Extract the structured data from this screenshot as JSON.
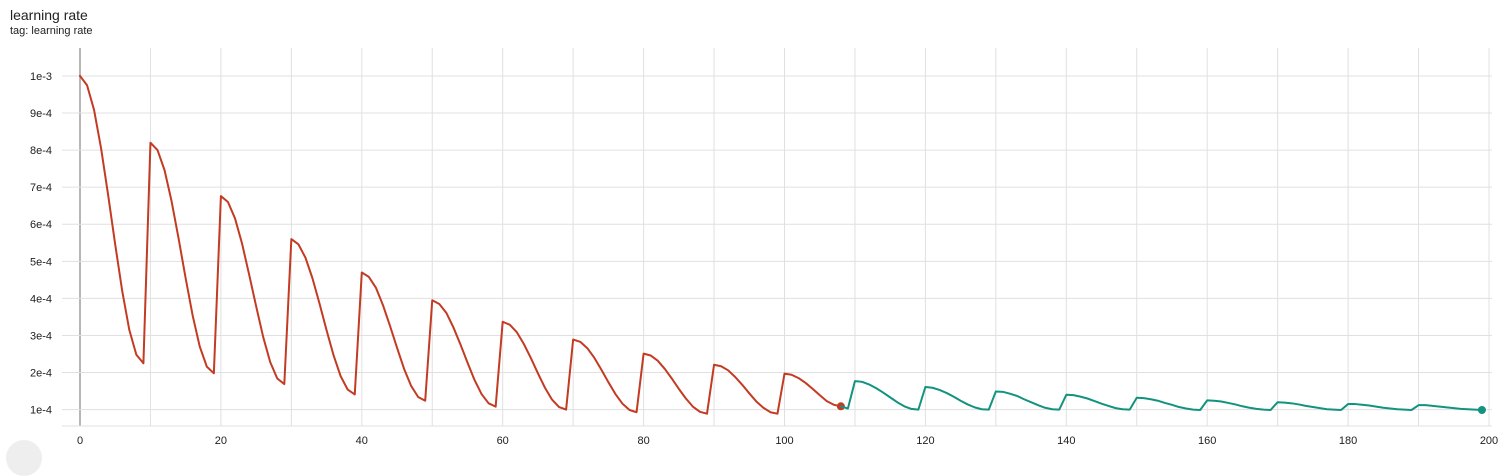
{
  "card": {
    "title": "learning rate",
    "tag": "tag: learning rate"
  },
  "chart_data": {
    "type": "line",
    "title": "learning rate",
    "subtitle": "tag: learning rate",
    "xlabel": "",
    "ylabel": "",
    "xlim": [
      -2,
      201
    ],
    "ylim": [
      7.2e-05,
      0.00107
    ],
    "x_ticks": [
      0,
      20,
      40,
      60,
      80,
      100,
      120,
      140,
      160,
      180,
      200
    ],
    "y_ticks": [
      0.0001,
      0.0002,
      0.0003,
      0.0004,
      0.0005,
      0.0006,
      0.0007,
      0.0008,
      0.0009,
      0.001
    ],
    "y_tick_labels": [
      "1e-4",
      "2e-4",
      "3e-4",
      "4e-4",
      "5e-4",
      "6e-4",
      "7e-4",
      "8e-4",
      "9e-4",
      "1e-3"
    ],
    "grid": true,
    "series": [
      {
        "color": "#c23b22",
        "end_marker": true,
        "x": [
          0,
          1,
          2,
          3,
          4,
          5,
          6,
          7,
          8,
          9,
          10,
          11,
          12,
          13,
          14,
          15,
          16,
          17,
          18,
          19,
          20,
          21,
          22,
          23,
          24,
          25,
          26,
          27,
          28,
          29,
          30,
          31,
          32,
          33,
          34,
          35,
          36,
          37,
          38,
          39,
          40,
          41,
          42,
          43,
          44,
          45,
          46,
          47,
          48,
          49,
          50,
          51,
          52,
          53,
          54,
          55,
          56,
          57,
          58,
          59,
          60,
          61,
          62,
          63,
          64,
          65,
          66,
          67,
          68,
          69,
          70,
          71,
          72,
          73,
          74,
          75,
          76,
          77,
          78,
          79,
          80,
          81,
          82,
          83,
          84,
          85,
          86,
          87,
          88,
          89,
          90,
          91,
          92,
          93,
          94,
          95,
          96,
          97,
          98,
          99,
          100,
          101,
          102,
          103,
          104,
          105,
          106,
          107,
          108
        ],
        "y": [
          0.001,
          0.000975,
          0.000908,
          0.000804,
          0.000678,
          0.000545,
          0.000419,
          0.000315,
          0.000248,
          0.000225,
          0.00082,
          0.0008,
          0.000746,
          0.000662,
          0.000561,
          0.000454,
          0.000353,
          0.00027,
          0.000216,
          0.000198,
          0.000676,
          0.00066,
          0.000616,
          0.000548,
          0.000465,
          0.000379,
          0.000296,
          0.000228,
          0.000184,
          0.000169,
          0.00056,
          0.000546,
          0.00051,
          0.000454,
          0.000386,
          0.000314,
          0.000246,
          0.00019,
          0.000154,
          0.000141,
          0.00047,
          0.000458,
          0.000429,
          0.000382,
          0.000326,
          0.000267,
          0.00021,
          0.000164,
          0.000134,
          0.000124,
          0.000395,
          0.000385,
          0.000361,
          0.000322,
          0.000276,
          0.000227,
          0.00018,
          0.000142,
          0.000117,
          0.000108,
          0.000337,
          0.000329,
          0.000309,
          0.000277,
          0.000239,
          0.000198,
          0.000159,
          0.000127,
          0.000107,
          0.0001,
          0.000289,
          0.000283,
          0.000266,
          0.00024,
          0.000208,
          0.000174,
          0.000142,
          0.000116,
          9.9e-05,
          9.3e-05,
          0.000251,
          0.000246,
          0.000232,
          0.00021,
          0.000184,
          0.000156,
          0.00013,
          0.000108,
          9.4e-05,
          8.9e-05,
          0.000221,
          0.000217,
          0.000206,
          0.000188,
          0.000167,
          0.000144,
          0.000122,
          0.000105,
          9.3e-05,
          8.9e-05,
          0.000197,
          0.000194,
          0.000185,
          0.000172,
          0.000156,
          0.000139,
          0.000123,
          0.000113,
          0.000109
        ]
      },
      {
        "color": "#12937f",
        "end_marker": true,
        "x": [
          108,
          109,
          110,
          111,
          112,
          113,
          114,
          115,
          116,
          117,
          118,
          119,
          120,
          121,
          122,
          123,
          124,
          125,
          126,
          127,
          128,
          129,
          130,
          131,
          132,
          133,
          134,
          135,
          136,
          137,
          138,
          139,
          140,
          141,
          142,
          143,
          144,
          145,
          146,
          147,
          148,
          149,
          150,
          151,
          152,
          153,
          154,
          155,
          156,
          157,
          158,
          159,
          160,
          161,
          162,
          163,
          164,
          165,
          166,
          167,
          168,
          169,
          170,
          171,
          172,
          173,
          174,
          175,
          176,
          177,
          178,
          179,
          180,
          181,
          182,
          183,
          184,
          185,
          186,
          187,
          188,
          189,
          190,
          191,
          192,
          193,
          194,
          195,
          196,
          197,
          198,
          199
        ],
        "y": [
          0.000109,
          0.000103,
          0.000177,
          0.000175,
          0.000168,
          0.000158,
          0.000146,
          0.000133,
          0.00012,
          0.000109,
          0.000102,
          0.0001,
          0.000161,
          0.000159,
          0.000153,
          0.000145,
          0.000135,
          0.000124,
          0.000114,
          0.000106,
          0.000101,
          0.0001,
          0.000149,
          0.000148,
          0.000143,
          0.000137,
          0.000128,
          0.00012,
          0.000112,
          0.000105,
          0.000101,
          0.0001,
          0.00014,
          0.000139,
          0.000135,
          0.00013,
          0.000123,
          0.000116,
          0.00011,
          0.000104,
          0.000101,
          0.0001,
          0.000132,
          0.000131,
          0.000128,
          0.000124,
          0.000118,
          0.000113,
          0.000107,
          0.000103,
          0.0001,
          9.9e-05,
          0.000125,
          0.000124,
          0.000122,
          0.000118,
          0.000114,
          0.000109,
          0.000105,
          0.000102,
          0.0001,
          9.9e-05,
          0.00012,
          0.000119,
          0.000117,
          0.000114,
          0.00011,
          0.000107,
          0.000104,
          0.000101,
          0.0001,
          9.9e-05,
          0.000115,
          0.000115,
          0.000113,
          0.000111,
          0.000108,
          0.000105,
          0.000103,
          0.000101,
          0.0001,
          9.9e-05,
          0.000112,
          0.000112,
          0.00011,
          0.000108,
          0.000106,
          0.000104,
          0.000102,
          0.000101,
          0.0001,
          9.9e-05
        ]
      }
    ]
  }
}
